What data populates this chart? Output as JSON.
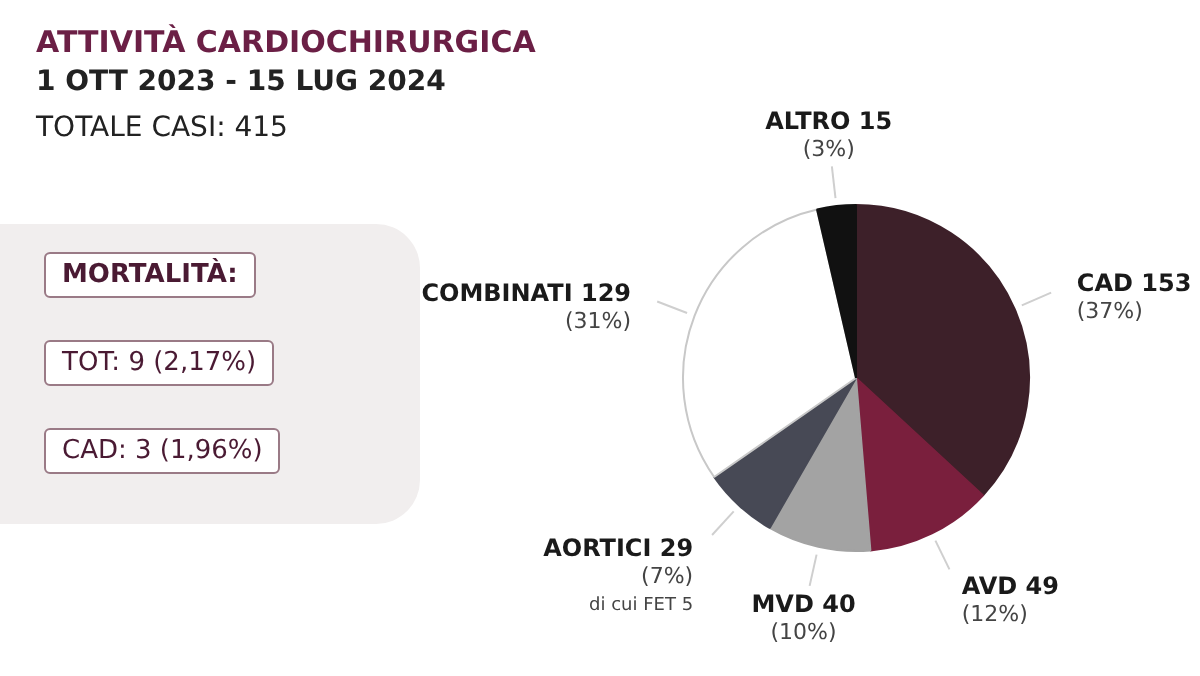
{
  "chart_data": {
    "type": "pie",
    "title": "ATTIVITÀ CARDIOCHIRURGICA",
    "subtitle": "1 OTT 2023 - 15 LUG 2024",
    "categories": [
      "CAD",
      "AVD",
      "MVD",
      "AORTICI",
      "COMBINATI",
      "ALTRO"
    ],
    "values": [
      153,
      49,
      40,
      29,
      129,
      15
    ],
    "colors": [
      "#3d2029",
      "#7a1f3d",
      "#a3a3a3",
      "#474955",
      "#ffffff",
      "#111111"
    ],
    "data_labels": true,
    "annotations": [
      {
        "text": "(37%)",
        "x": "CAD"
      },
      {
        "text": "(12%)",
        "x": "AVD"
      },
      {
        "text": "(10%)",
        "x": "MVD"
      },
      {
        "text": "(7%)",
        "x": "AORTICI"
      },
      {
        "text": "di cui FET 5",
        "x": "AORTICI"
      },
      {
        "text": "(31%)",
        "x": "COMBINATI"
      },
      {
        "text": "(3%)",
        "x": "ALTRO"
      },
      "TOTALE CASI: 415",
      "MORTALITÀ:",
      "TOT: 9 (2,17%)",
      "CAD: 3 (1,96%)"
    ]
  }
}
